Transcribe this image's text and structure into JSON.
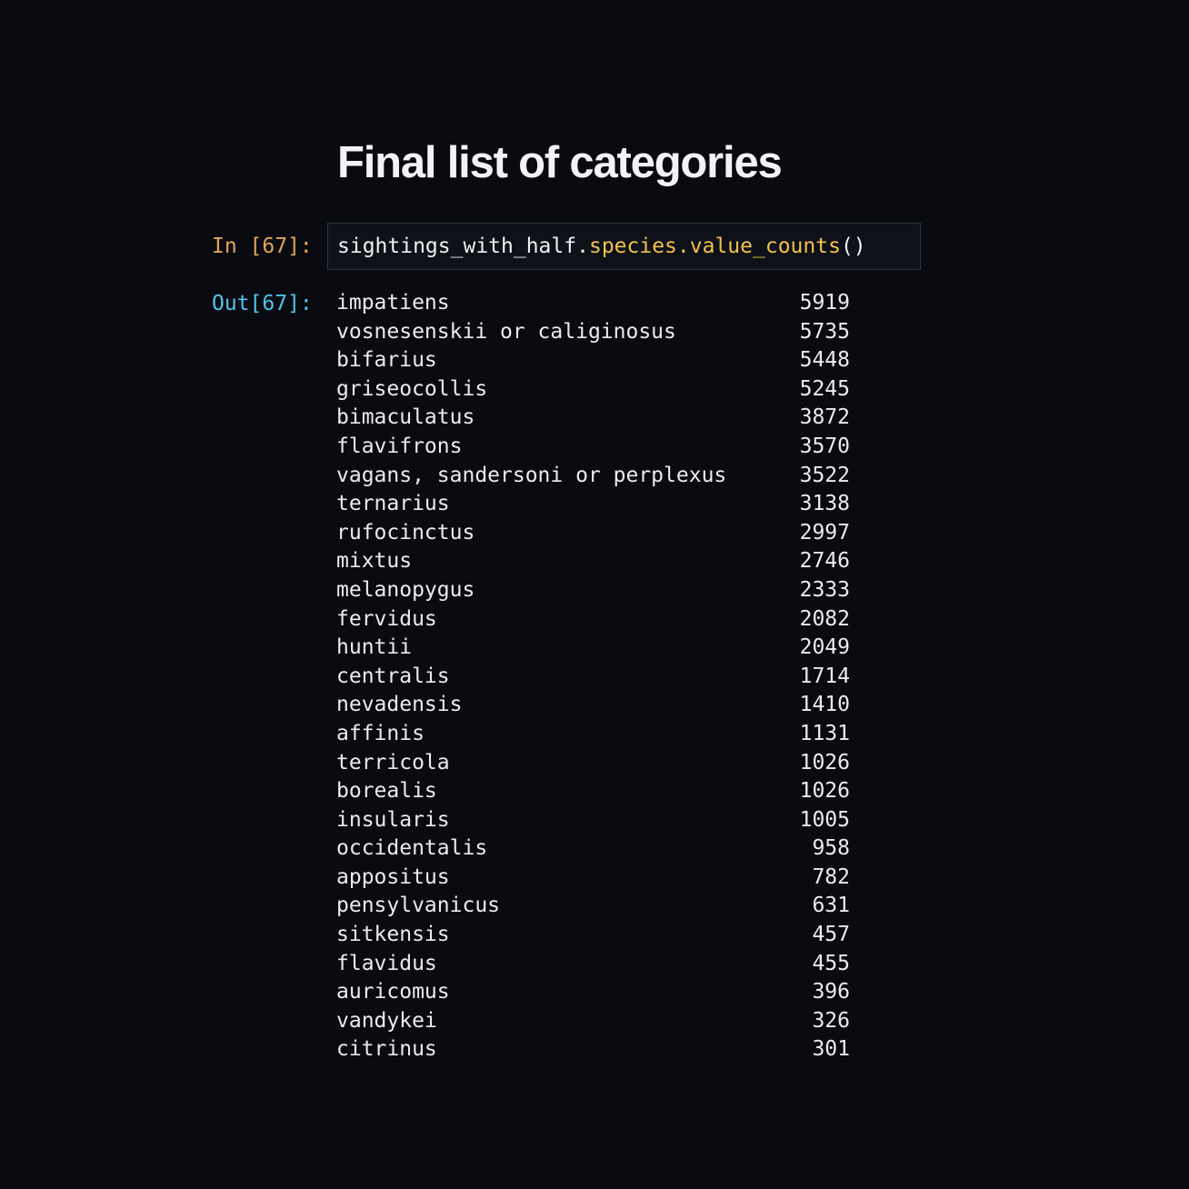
{
  "title": "Final list of categories",
  "cell": {
    "in_prompt": "In [67]:",
    "out_prompt": "Out[67]:",
    "code": {
      "object": "sightings_with_half",
      "dot1": ".",
      "attr1": "species",
      "dot2": ".",
      "method": "value_counts",
      "call": "()"
    }
  },
  "output": {
    "rows": [
      {
        "species": "impatiens",
        "count": "5919"
      },
      {
        "species": "vosnesenskii or caliginosus",
        "count": "5735"
      },
      {
        "species": "bifarius",
        "count": "5448"
      },
      {
        "species": "griseocollis",
        "count": "5245"
      },
      {
        "species": "bimaculatus",
        "count": "3872"
      },
      {
        "species": "flavifrons",
        "count": "3570"
      },
      {
        "species": "vagans, sandersoni or perplexus",
        "count": "3522"
      },
      {
        "species": "ternarius",
        "count": "3138"
      },
      {
        "species": "rufocinctus",
        "count": "2997"
      },
      {
        "species": "mixtus",
        "count": "2746"
      },
      {
        "species": "melanopygus",
        "count": "2333"
      },
      {
        "species": "fervidus",
        "count": "2082"
      },
      {
        "species": "huntii",
        "count": "2049"
      },
      {
        "species": "centralis",
        "count": "1714"
      },
      {
        "species": "nevadensis",
        "count": "1410"
      },
      {
        "species": "affinis",
        "count": "1131"
      },
      {
        "species": "terricola",
        "count": "1026"
      },
      {
        "species": "borealis",
        "count": "1026"
      },
      {
        "species": "insularis",
        "count": "1005"
      },
      {
        "species": "occidentalis",
        "count": "958"
      },
      {
        "species": "appositus",
        "count": "782"
      },
      {
        "species": "pensylvanicus",
        "count": "631"
      },
      {
        "species": "sitkensis",
        "count": "457"
      },
      {
        "species": "flavidus",
        "count": "455"
      },
      {
        "species": "auricomus",
        "count": "396"
      },
      {
        "species": "vandykei",
        "count": "326"
      },
      {
        "species": "citrinus",
        "count": "301"
      }
    ]
  },
  "colors": {
    "background": "#0a0b10",
    "text": "#e9ebef",
    "in_prompt": "#e0a458",
    "out_prompt": "#4fc3e8",
    "code_attribute": "#f2c14e",
    "cell_border": "#2c313b"
  }
}
